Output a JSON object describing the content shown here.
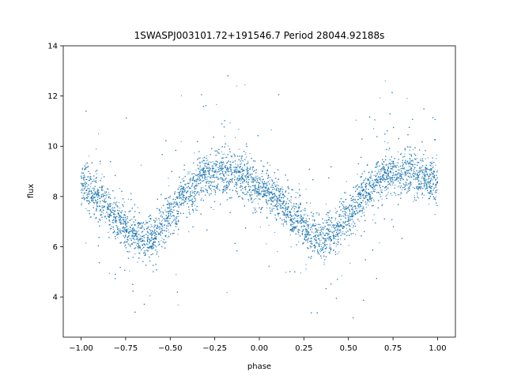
{
  "chart_data": {
    "type": "scatter",
    "title": "1SWASPJ003101.72+191546.7 Period 28044.92188s",
    "xlabel": "phase",
    "ylabel": "flux",
    "xlim": [
      -1.1,
      1.1
    ],
    "ylim": [
      2.4,
      14
    ],
    "x_ticks": [
      -1.0,
      -0.75,
      -0.5,
      -0.25,
      0.0,
      0.25,
      0.5,
      0.75,
      1.0
    ],
    "x_tick_labels": [
      "−1.00",
      "−0.75",
      "−0.50",
      "−0.25",
      "0.00",
      "0.25",
      "0.50",
      "0.75",
      "1.00"
    ],
    "y_ticks": [
      4,
      6,
      8,
      10,
      12,
      14
    ],
    "y_tick_labels": [
      "4",
      "6",
      "8",
      "10",
      "12",
      "14"
    ],
    "grid": false,
    "point_color": "#1f77b4",
    "series": [
      {
        "x_range": [
          -1.0,
          1.0
        ],
        "profile_phase": [
          -1.0,
          -0.9,
          -0.8,
          -0.7,
          -0.65,
          -0.6,
          -0.5,
          -0.4,
          -0.3,
          -0.2,
          -0.1,
          0.0,
          0.1,
          0.2,
          0.3,
          0.35,
          0.4,
          0.5,
          0.6,
          0.7,
          0.8,
          0.9,
          1.0
        ],
        "profile_flux": [
          8.5,
          7.9,
          7.1,
          6.5,
          6.3,
          6.4,
          7.3,
          8.2,
          8.8,
          9.0,
          8.8,
          8.4,
          7.9,
          7.1,
          6.5,
          6.3,
          6.4,
          7.3,
          8.2,
          8.8,
          9.0,
          8.8,
          8.5
        ]
      }
    ]
  }
}
